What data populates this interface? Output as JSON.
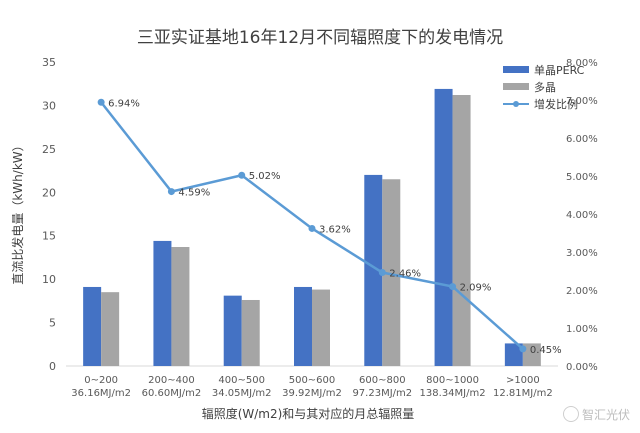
{
  "chart_data": {
    "type": "bar",
    "title": "三亚实证基地16年12月不同辐照度下的发电情况",
    "xlabel": "辐照度(W/m2)和与其对应的月总辐照量",
    "ylabel": "直流比发电量（kWh/kW）",
    "ylim": [
      0,
      35
    ],
    "yticks": [
      0,
      5,
      10,
      15,
      20,
      25,
      30,
      35
    ],
    "y2lim": [
      0,
      8
    ],
    "y2ticks": [
      "0.00%",
      "1.00%",
      "2.00%",
      "3.00%",
      "4.00%",
      "5.00%",
      "6.00%",
      "7.00%",
      "8.00%"
    ],
    "categories": [
      [
        "0~200",
        "36.16MJ/m2"
      ],
      [
        "200~400",
        "60.60MJ/m2"
      ],
      [
        "400~500",
        "34.05MJ/m2"
      ],
      [
        "500~600",
        "39.92MJ/m2"
      ],
      [
        "600~800",
        "97.23MJ/m2"
      ],
      [
        "800~1000",
        "138.34MJ/m2"
      ],
      [
        ">1000",
        "12.81MJ/m2"
      ]
    ],
    "series": [
      {
        "name": "单晶PERC",
        "type": "bar",
        "axis": "left",
        "color": "#4472c4",
        "values": [
          9.1,
          14.4,
          8.1,
          9.1,
          22.0,
          31.9,
          2.6
        ]
      },
      {
        "name": "多晶",
        "type": "bar",
        "axis": "left",
        "color": "#a5a5a5",
        "values": [
          8.5,
          13.7,
          7.6,
          8.8,
          21.5,
          31.2,
          2.6
        ]
      },
      {
        "name": "增发比例",
        "type": "line",
        "axis": "right",
        "color": "#5b9bd5",
        "values": [
          6.94,
          4.59,
          5.02,
          3.62,
          2.46,
          2.09,
          0.45
        ],
        "labels": [
          "6.94%",
          "4.59%",
          "5.02%",
          "3.62%",
          "2.46%",
          "2.09%",
          "0.45%"
        ]
      }
    ],
    "legend": "top-right",
    "grid": false
  },
  "watermark": "智汇光伏"
}
